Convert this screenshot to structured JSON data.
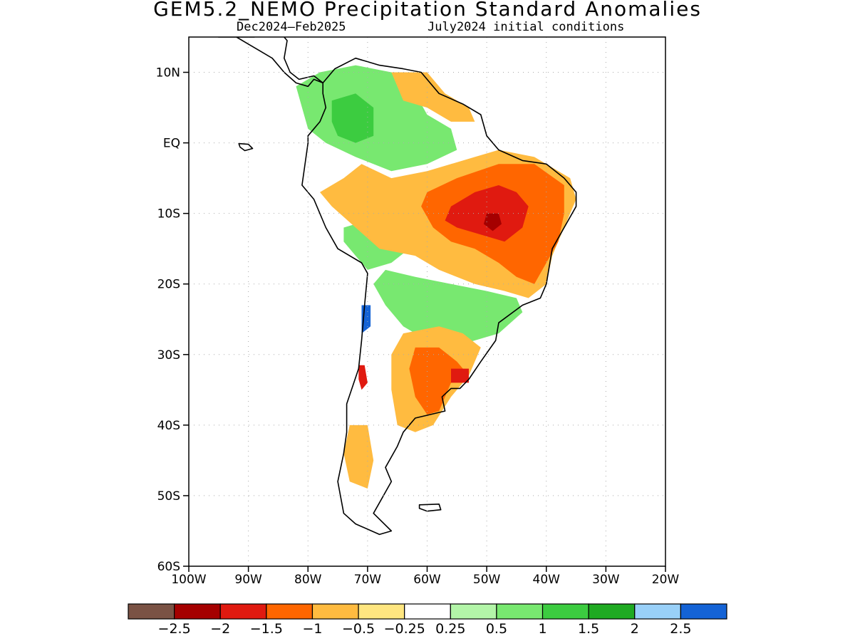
{
  "title": "GEM5.2_NEMO Precipitation Standard Anomalies",
  "subtitle_left": "Dec2024–Feb2025",
  "subtitle_right": "July2024 initial conditions",
  "map": {
    "lon_range": [
      -100,
      -20
    ],
    "lat_range": [
      -60,
      15
    ],
    "lat_ticks": [
      {
        "value": 10,
        "label": "10N"
      },
      {
        "value": 0,
        "label": "EQ"
      },
      {
        "value": -10,
        "label": "10S"
      },
      {
        "value": -20,
        "label": "20S"
      },
      {
        "value": -30,
        "label": "30S"
      },
      {
        "value": -40,
        "label": "40S"
      },
      {
        "value": -50,
        "label": "50S"
      },
      {
        "value": -60,
        "label": "60S"
      }
    ],
    "lon_ticks": [
      {
        "value": -100,
        "label": "100W"
      },
      {
        "value": -90,
        "label": "90W"
      },
      {
        "value": -80,
        "label": "80W"
      },
      {
        "value": -70,
        "label": "70W"
      },
      {
        "value": -60,
        "label": "60W"
      },
      {
        "value": -50,
        "label": "50W"
      },
      {
        "value": -40,
        "label": "40W"
      },
      {
        "value": -30,
        "label": "30W"
      },
      {
        "value": -20,
        "label": "20W"
      }
    ],
    "grid": true
  },
  "colorbar": {
    "colors": [
      "#7a5244",
      "#a50000",
      "#e01a10",
      "#ff6600",
      "#ffbb40",
      "#ffe680",
      "#ffffff",
      "#b3f5a8",
      "#78e870",
      "#3ccc40",
      "#1faa22",
      "#99d0f8",
      "#1463d6"
    ],
    "labels": [
      "−2.5",
      "−2",
      "−1.5",
      "−1",
      "−0.5",
      "−0.25",
      "0.25",
      "0.5",
      "1",
      "1.5",
      "2",
      "2.5"
    ]
  },
  "anomaly_regions": [
    {
      "level": 0.5,
      "color": "#78e870",
      "polygon": [
        [
          -82,
          8
        ],
        [
          -78,
          10
        ],
        [
          -72,
          11
        ],
        [
          -66,
          10
        ],
        [
          -62,
          7
        ],
        [
          -60,
          4
        ],
        [
          -56,
          2
        ],
        [
          -55,
          -1
        ],
        [
          -60,
          -3
        ],
        [
          -66,
          -4
        ],
        [
          -72,
          -2
        ],
        [
          -77,
          0
        ],
        [
          -80,
          2
        ],
        [
          -81,
          5
        ]
      ]
    },
    {
      "level": 1.5,
      "color": "#3ccc40",
      "polygon": [
        [
          -76,
          6
        ],
        [
          -72,
          7
        ],
        [
          -69,
          5
        ],
        [
          -69,
          1
        ],
        [
          -72,
          0
        ],
        [
          -75,
          1
        ],
        [
          -76,
          3
        ]
      ]
    },
    {
      "level": 0.5,
      "color": "#78e870",
      "polygon": [
        [
          -74,
          -12
        ],
        [
          -70,
          -11
        ],
        [
          -66,
          -12
        ],
        [
          -63,
          -15
        ],
        [
          -66,
          -17
        ],
        [
          -70,
          -18
        ],
        [
          -72,
          -16
        ],
        [
          -74,
          -14
        ]
      ]
    },
    {
      "level": 0.5,
      "color": "#78e870",
      "polygon": [
        [
          -67,
          -18
        ],
        [
          -62,
          -19
        ],
        [
          -56,
          -20
        ],
        [
          -50,
          -21
        ],
        [
          -45,
          -22
        ],
        [
          -44,
          -24
        ],
        [
          -48,
          -27
        ],
        [
          -52,
          -28
        ],
        [
          -56,
          -29
        ],
        [
          -60,
          -28
        ],
        [
          -64,
          -26
        ],
        [
          -67,
          -23
        ],
        [
          -69,
          -20
        ]
      ]
    },
    {
      "level": 2.5,
      "color": "#1463d6",
      "polygon": [
        [
          -71,
          -23
        ],
        [
          -69.5,
          -23
        ],
        [
          -69.5,
          -26
        ],
        [
          -71,
          -27
        ]
      ]
    },
    {
      "level": -0.5,
      "color": "#ffbb40",
      "polygon": [
        [
          -66,
          10
        ],
        [
          -60,
          10
        ],
        [
          -57,
          7
        ],
        [
          -53,
          5
        ],
        [
          -52,
          3
        ],
        [
          -56,
          3
        ],
        [
          -60,
          5
        ],
        [
          -64,
          6
        ]
      ]
    },
    {
      "level": -0.5,
      "color": "#ffbb40",
      "polygon": [
        [
          -71,
          -3
        ],
        [
          -66,
          -5
        ],
        [
          -60,
          -4
        ],
        [
          -52,
          -2
        ],
        [
          -48,
          -1
        ],
        [
          -42,
          -2
        ],
        [
          -36,
          -5
        ],
        [
          -35,
          -8
        ],
        [
          -37,
          -12
        ],
        [
          -39,
          -16
        ],
        [
          -40,
          -20
        ],
        [
          -43,
          -22
        ],
        [
          -47,
          -21
        ],
        [
          -52,
          -20
        ],
        [
          -58,
          -18
        ],
        [
          -62,
          -16
        ],
        [
          -68,
          -15
        ],
        [
          -72,
          -12
        ],
        [
          -76,
          -9
        ],
        [
          -78,
          -7
        ],
        [
          -74,
          -5
        ]
      ]
    },
    {
      "level": -1,
      "color": "#ff6600",
      "polygon": [
        [
          -60,
          -7
        ],
        [
          -55,
          -5
        ],
        [
          -48,
          -3
        ],
        [
          -42,
          -3
        ],
        [
          -37,
          -6
        ],
        [
          -37,
          -10
        ],
        [
          -38,
          -14
        ],
        [
          -40,
          -17
        ],
        [
          -42,
          -20
        ],
        [
          -45,
          -19
        ],
        [
          -48,
          -17
        ],
        [
          -52,
          -15
        ],
        [
          -56,
          -14
        ],
        [
          -59,
          -12
        ],
        [
          -61,
          -9
        ]
      ]
    },
    {
      "level": -1.5,
      "color": "#e01a10",
      "polygon": [
        [
          -56,
          -9
        ],
        [
          -52,
          -7
        ],
        [
          -48,
          -6
        ],
        [
          -45,
          -7
        ],
        [
          -43,
          -9
        ],
        [
          -44,
          -12
        ],
        [
          -47,
          -14
        ],
        [
          -51,
          -13
        ],
        [
          -55,
          -12
        ],
        [
          -57,
          -11
        ]
      ]
    },
    {
      "level": -2,
      "color": "#a50000",
      "polygon": [
        [
          -50,
          -10
        ],
        [
          -48,
          -10
        ],
        [
          -47.5,
          -11.5
        ],
        [
          -49,
          -12.5
        ],
        [
          -50.5,
          -11.5
        ]
      ]
    },
    {
      "level": -0.5,
      "color": "#ffbb40",
      "polygon": [
        [
          -64,
          -27
        ],
        [
          -58,
          -26
        ],
        [
          -54,
          -27
        ],
        [
          -51,
          -29
        ],
        [
          -53,
          -33
        ],
        [
          -56,
          -36
        ],
        [
          -59,
          -40
        ],
        [
          -62,
          -41
        ],
        [
          -65,
          -40
        ],
        [
          -66,
          -35
        ],
        [
          -66,
          -30
        ]
      ]
    },
    {
      "level": -1,
      "color": "#ff6600",
      "polygon": [
        [
          -62,
          -29
        ],
        [
          -58,
          -29
        ],
        [
          -55,
          -31
        ],
        [
          -53,
          -33
        ],
        [
          -56,
          -34
        ],
        [
          -58,
          -38
        ],
        [
          -60,
          -38.5
        ],
        [
          -62,
          -36
        ],
        [
          -63,
          -32
        ]
      ]
    },
    {
      "level": -1.5,
      "color": "#e01a10",
      "polygon": [
        [
          -56,
          -32
        ],
        [
          -53,
          -32
        ],
        [
          -53,
          -34
        ],
        [
          -56,
          -34
        ]
      ]
    },
    {
      "level": -0.5,
      "color": "#ffbb40",
      "polygon": [
        [
          -73,
          -40
        ],
        [
          -70,
          -40
        ],
        [
          -69,
          -45
        ],
        [
          -70,
          -49
        ],
        [
          -73,
          -48
        ],
        [
          -74,
          -44
        ]
      ]
    },
    {
      "level": -1.5,
      "color": "#e01a10",
      "polygon": [
        [
          -71.5,
          -31.5
        ],
        [
          -70.5,
          -31.5
        ],
        [
          -70,
          -34
        ],
        [
          -71,
          -35
        ],
        [
          -71.5,
          -33.5
        ]
      ]
    }
  ],
  "landmasses": [
    {
      "name": "South America",
      "polygon": [
        [
          -77.5,
          8.5
        ],
        [
          -75.5,
          10.5
        ],
        [
          -72,
          12
        ],
        [
          -68,
          11
        ],
        [
          -64,
          10.5
        ],
        [
          -61,
          10
        ],
        [
          -58,
          7
        ],
        [
          -54,
          5.5
        ],
        [
          -51,
          4
        ],
        [
          -50,
          1
        ],
        [
          -48,
          -1
        ],
        [
          -44,
          -2.5
        ],
        [
          -40,
          -3
        ],
        [
          -37,
          -5
        ],
        [
          -35,
          -7
        ],
        [
          -35,
          -9
        ],
        [
          -37,
          -12
        ],
        [
          -39,
          -15
        ],
        [
          -40,
          -20
        ],
        [
          -41,
          -22
        ],
        [
          -44,
          -23
        ],
        [
          -48,
          -25.5
        ],
        [
          -48.5,
          -28
        ],
        [
          -51,
          -31
        ],
        [
          -53,
          -33.5
        ],
        [
          -54.5,
          -34.8
        ],
        [
          -56,
          -34.8
        ],
        [
          -57.5,
          -36
        ],
        [
          -57,
          -38
        ],
        [
          -62,
          -39
        ],
        [
          -64,
          -41
        ],
        [
          -65,
          -43
        ],
        [
          -67,
          -46
        ],
        [
          -66,
          -48
        ],
        [
          -68,
          -51
        ],
        [
          -69,
          -52.5
        ],
        [
          -66,
          -55
        ],
        [
          -68,
          -55.5
        ],
        [
          -72,
          -54
        ],
        [
          -74,
          -52.5
        ],
        [
          -75,
          -48
        ],
        [
          -74,
          -44
        ],
        [
          -73.5,
          -41
        ],
        [
          -73.5,
          -37
        ],
        [
          -71.5,
          -32
        ],
        [
          -71,
          -28
        ],
        [
          -70.5,
          -23
        ],
        [
          -70,
          -18.5
        ],
        [
          -71,
          -17
        ],
        [
          -75,
          -15
        ],
        [
          -77,
          -12
        ],
        [
          -79,
          -8
        ],
        [
          -81,
          -6
        ],
        [
          -80.5,
          -3
        ],
        [
          -80,
          0
        ],
        [
          -80,
          1
        ],
        [
          -79,
          2
        ],
        [
          -78,
          3
        ],
        [
          -77,
          5
        ],
        [
          -77.5,
          7
        ],
        [
          -77.5,
          8.5
        ]
      ]
    },
    {
      "name": "Central America",
      "polygon": [
        [
          -95,
          15
        ],
        [
          -92,
          15
        ],
        [
          -90,
          14
        ],
        [
          -88,
          13
        ],
        [
          -86,
          12
        ],
        [
          -84,
          10
        ],
        [
          -82,
          8.5
        ],
        [
          -80,
          8
        ],
        [
          -79,
          9
        ],
        [
          -77.5,
          8.5
        ],
        [
          -79,
          9.5
        ],
        [
          -81.5,
          9
        ],
        [
          -83,
          10
        ],
        [
          -84,
          12
        ],
        [
          -83.5,
          14.5
        ],
        [
          -85,
          16
        ],
        [
          -88,
          16
        ],
        [
          -89,
          15
        ]
      ]
    },
    {
      "name": "Falklands",
      "polygon": [
        [
          -61.3,
          -51.3
        ],
        [
          -58,
          -51.2
        ],
        [
          -57.7,
          -52
        ],
        [
          -60,
          -52.2
        ],
        [
          -61.3,
          -51.8
        ]
      ]
    },
    {
      "name": "Galapagos",
      "polygon": [
        [
          -91.6,
          -0.1
        ],
        [
          -90,
          -0.2
        ],
        [
          -89.3,
          -0.8
        ],
        [
          -90.6,
          -1.1
        ],
        [
          -91.4,
          -0.6
        ]
      ]
    }
  ]
}
